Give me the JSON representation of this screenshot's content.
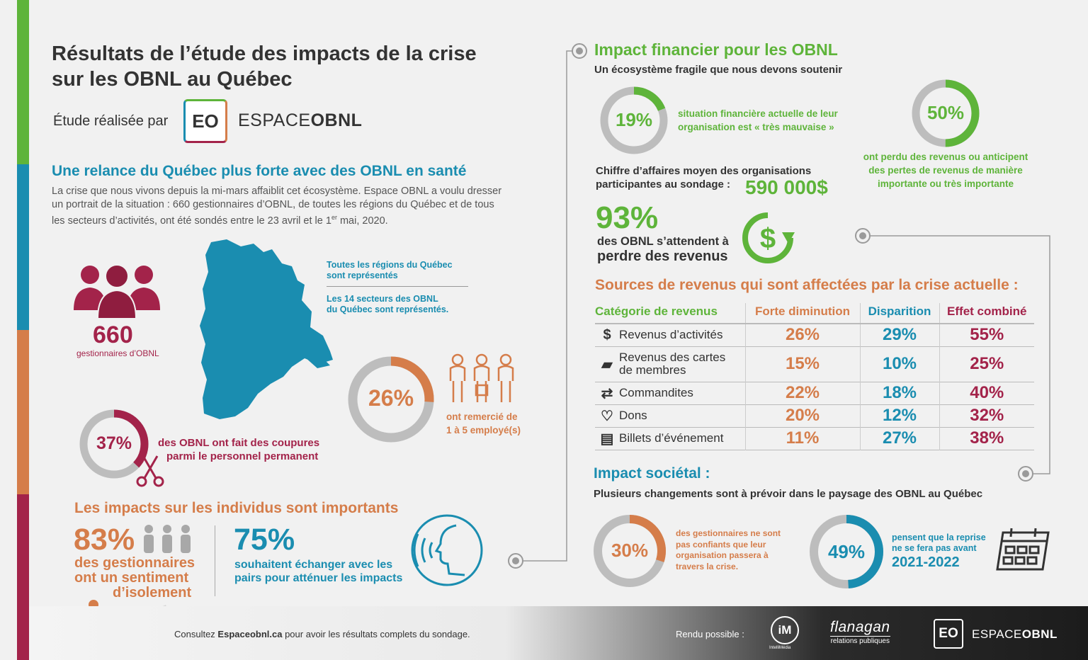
{
  "colors": {
    "green": "#5eb43a",
    "blue": "#1a8db0",
    "orange": "#d57d4a",
    "red": "#a3234a",
    "grey": "#bdbdbd"
  },
  "header": {
    "title_line1": "Résultats de l’étude des impacts de la crise",
    "title_line2": "sur les OBNL au Québec",
    "study_by": "Étude réalisée par",
    "logo_mark": "EO",
    "logo_text_light": "ESPACE",
    "logo_text_bold": "OBNL"
  },
  "relance": {
    "heading": "Une relance du Québec plus forte avec des OBNL en santé",
    "body_line1": "La crise que nous vivons depuis la mi-mars affaiblit cet écosystème. Espace OBNL a voulu dresser",
    "body_line2": "un portrait de la situation : 660 gestionnaires d’OBNL, de toutes les régions du Québec et de tous",
    "body_line3a": "les secteurs d’activités, ont été sondés entre le 23 avril et le 1",
    "body_line3_sup": "er",
    "body_line3b": " mai, 2020."
  },
  "managers": {
    "count": "660",
    "label": "gestionnaires d’OBNL"
  },
  "regions": {
    "line1": "Toutes les régions du Québec",
    "line2": "sont représentés",
    "line3": "Les 14 secteurs des OBNL",
    "line4": "du Québec sont représentés."
  },
  "layoff": {
    "pct": "26%",
    "value": 26,
    "line1": "ont remercié de",
    "line2": "1 à 5 employé(s)"
  },
  "cuts": {
    "pct": "37%",
    "value": 37,
    "line1": "des OBNL ont fait des coupures",
    "line2": "parmi le personnel permanent"
  },
  "individus": {
    "heading": "Les impacts sur les individus sont importants",
    "isolation_pct": "83%",
    "isolation_line1": "des gestionnaires",
    "isolation_line2": "ont un sentiment",
    "isolation_line3": "d’isolement",
    "exchange_pct": "75%",
    "exchange_line1": "souhaitent échanger avec les",
    "exchange_line2": "pairs pour atténuer les impacts"
  },
  "financier": {
    "heading": "Impact financier pour les OBNL",
    "subheading": "Un écosystème fragile que nous devons soutenir",
    "bad_pct": "19%",
    "bad_value": 19,
    "bad_line1": "situation financière actuelle de leur",
    "bad_line2": "organisation est « très mauvaise »",
    "lost_pct": "50%",
    "lost_value": 50,
    "lost_line1": "ont perdu des revenus ou anticipent",
    "lost_line2": "des pertes de revenus de manière",
    "lost_line3": "importante ou très importante",
    "ca_line1": "Chiffre d’affaires moyen des organisations",
    "ca_line2": "participantes au sondage :",
    "ca_value": "590 000$",
    "expect_pct": "93%",
    "expect_line1": "des OBNL s’attendent à",
    "expect_line2": "perdre des revenus"
  },
  "sources": {
    "heading": "Sources de revenus qui sont affectées par la crise actuelle :",
    "headers": [
      "Catégorie de revenus",
      "Forte diminution",
      "Disparition",
      "Effet combiné"
    ],
    "rows": [
      {
        "icon": "dollar-icon",
        "label": "Revenus d’activités",
        "forte": "26%",
        "disp": "29%",
        "comb": "55%"
      },
      {
        "icon": "membership-card-icon",
        "label": "Revenus des cartes de membres",
        "forte": "15%",
        "disp": "10%",
        "comb": "25%"
      },
      {
        "icon": "handshake-icon",
        "label": "Commandites",
        "forte": "22%",
        "disp": "18%",
        "comb": "40%"
      },
      {
        "icon": "donation-icon",
        "label": "Dons",
        "forte": "20%",
        "disp": "12%",
        "comb": "32%"
      },
      {
        "icon": "ticket-icon",
        "label": "Billets d’événement",
        "forte": "11%",
        "disp": "27%",
        "comb": "38%"
      }
    ]
  },
  "societal": {
    "heading": "Impact sociétal :",
    "subheading": "Plusieurs changements sont à prévoir dans le paysage des OBNL au Québec",
    "conf_pct": "30%",
    "conf_value": 30,
    "conf_line1": "des gestionnaires ne sont",
    "conf_line2": "pas confiants que leur",
    "conf_line3": "organisation passera à",
    "conf_line4": "travers la crise.",
    "reprise_pct": "49%",
    "reprise_value": 49,
    "reprise_line1": "pensent que la reprise",
    "reprise_line2": "ne se fera pas avant",
    "reprise_year": "2021-2022"
  },
  "footer": {
    "text_before": "Consultez ",
    "text_link": "Espaceobnl.ca",
    "text_after": " pour avoir les résultats complets du sondage.",
    "sponsored": "Rendu possible :",
    "sponsor1_mark": "iM",
    "sponsor1_name": "IntelliMédia",
    "sponsor2_name": "flanagan",
    "sponsor2_sub": "relations publiques",
    "sponsor3_mark": "EO",
    "sponsor3_light": "ESPACE",
    "sponsor3_bold": "OBNL"
  }
}
